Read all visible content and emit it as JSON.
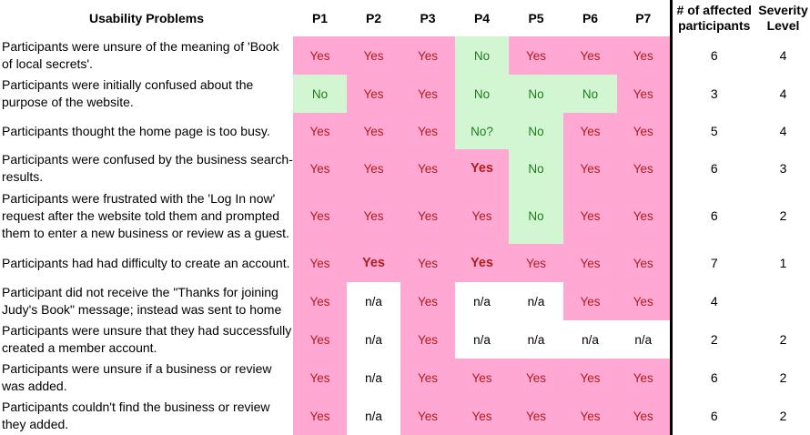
{
  "headers": {
    "problem": "Usability Problems",
    "participants": [
      "P1",
      "P2",
      "P3",
      "P4",
      "P5",
      "P6",
      "P7"
    ],
    "affected": "# of affected participants",
    "severity": "Severity Level"
  },
  "colors": {
    "yes_bg": "#ffa8d4",
    "yes_text": "#b01c1c",
    "no_bg": "#d2f6d2",
    "no_text": "#1e7b1e",
    "na_bg": "#ffffff"
  },
  "rows": [
    {
      "problem": "Participants were unsure of the meaning of 'Book of local secrets'.",
      "values": [
        "Yes",
        "Yes",
        "Yes",
        "No",
        "Yes",
        "Yes",
        "Yes"
      ],
      "emphasis": [
        false,
        false,
        false,
        false,
        false,
        false,
        false
      ],
      "affected": "6",
      "severity": "4"
    },
    {
      "problem": "Participants were initially confused about the purpose of the website.",
      "values": [
        "No",
        "Yes",
        "Yes",
        "No",
        "No",
        "No",
        "Yes"
      ],
      "emphasis": [
        false,
        false,
        false,
        false,
        false,
        false,
        false
      ],
      "affected": "3",
      "severity": "4"
    },
    {
      "problem": "Participants thought the home page is too busy.",
      "values": [
        "Yes",
        "Yes",
        "Yes",
        "No?",
        "No",
        "Yes",
        "Yes"
      ],
      "emphasis": [
        false,
        false,
        false,
        false,
        false,
        false,
        false
      ],
      "affected": "5",
      "severity": "4"
    },
    {
      "problem": "Participants were confused by the business search-results.",
      "values": [
        "Yes",
        "Yes",
        "Yes",
        "Yes",
        "No",
        "Yes",
        "Yes"
      ],
      "emphasis": [
        false,
        false,
        false,
        true,
        false,
        false,
        false
      ],
      "affected": "6",
      "severity": "3"
    },
    {
      "problem": "Participants were frustrated with the 'Log In now' request after the website told them and prompted them to enter a new business or review as a guest.",
      "values": [
        "Yes",
        "Yes",
        "Yes",
        "Yes",
        "No",
        "Yes",
        "Yes"
      ],
      "emphasis": [
        false,
        false,
        false,
        false,
        false,
        false,
        false
      ],
      "affected": "6",
      "severity": "2"
    },
    {
      "problem": "Participants had had difficulty to create an account.",
      "values": [
        "Yes",
        "Yes",
        "Yes",
        "Yes",
        "Yes",
        "Yes",
        "Yes"
      ],
      "emphasis": [
        false,
        true,
        false,
        true,
        false,
        false,
        false
      ],
      "affected": "7",
      "severity": "1"
    },
    {
      "problem": "Participant did not receive the \"Thanks for joining Judy's Book\" message; instead was sent to home",
      "values": [
        "Yes",
        "n/a",
        "Yes",
        "n/a",
        "n/a",
        "Yes",
        "Yes"
      ],
      "emphasis": [
        false,
        false,
        false,
        false,
        false,
        false,
        false
      ],
      "affected": "4",
      "severity": ""
    },
    {
      "problem": "Participants were unsure that they had successfully created a member account.",
      "values": [
        "Yes",
        "n/a",
        "Yes",
        "n/a",
        "n/a",
        "n/a",
        "n/a"
      ],
      "emphasis": [
        false,
        false,
        false,
        false,
        false,
        false,
        false
      ],
      "affected": "2",
      "severity": "2"
    },
    {
      "problem": "Participants were unsure if a business or review was added.",
      "values": [
        "Yes",
        "n/a",
        "Yes",
        "Yes",
        "Yes",
        "Yes",
        "Yes"
      ],
      "emphasis": [
        false,
        false,
        false,
        false,
        false,
        false,
        false
      ],
      "affected": "6",
      "severity": "2"
    },
    {
      "problem": "Participants couldn't find the business or review they added.",
      "values": [
        "Yes",
        "n/a",
        "Yes",
        "Yes",
        "Yes",
        "Yes",
        "Yes"
      ],
      "emphasis": [
        false,
        false,
        false,
        false,
        false,
        false,
        false
      ],
      "affected": "6",
      "severity": "2"
    }
  ]
}
